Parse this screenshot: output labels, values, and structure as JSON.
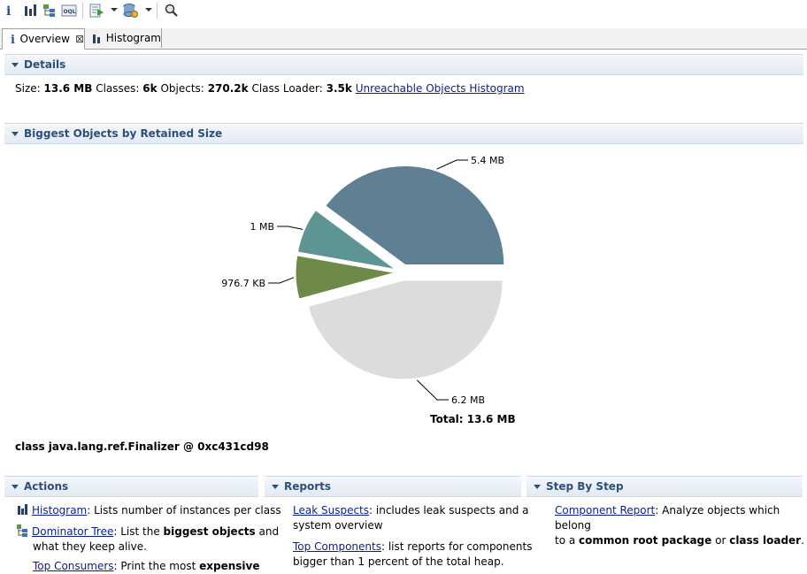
{
  "tabs": [
    {
      "label": "Overview"
    },
    {
      "label": "Histogram"
    }
  ],
  "details": {
    "header": "Details",
    "size_label": "Size:",
    "size_value": "13.6 MB",
    "classes_label": "Classes:",
    "classes_value": "6k",
    "objects_label": "Objects:",
    "objects_value": "270.2k",
    "loader_label": "Class Loader:",
    "loader_value": "3.5k",
    "link": "Unreachable Objects Histogram"
  },
  "biggest": {
    "header": "Biggest Objects by Retained Size",
    "total": "Total: 13.6 MB",
    "selected": "class java.lang.ref.Finalizer @ 0xc431cd98"
  },
  "chart_data": {
    "type": "pie",
    "slices": [
      {
        "label": "5.4 MB",
        "value": 5.4,
        "color": "#5f7f92"
      },
      {
        "label": "1 MB",
        "value": 1.0,
        "color": "#5f9494"
      },
      {
        "label": "976.7 KB",
        "value": 0.954,
        "color": "#6e8a48"
      },
      {
        "label": "6.2 MB",
        "value": 6.2,
        "color": "#dcdcdc"
      }
    ],
    "total": "Total: 13.6 MB"
  },
  "actions": {
    "header": "Actions",
    "histogram_link": "Histogram",
    "histogram_desc": ": Lists number of instances per class",
    "dominator_link": "Dominator Tree",
    "dominator_desc1": ": List the ",
    "dominator_bold": "biggest objects",
    "dominator_desc2": " and",
    "dominator_desc3": "what they keep alive.",
    "consumers_link": "Top Consumers",
    "consumers_desc": ": Print the most ",
    "consumers_bold": "expensive"
  },
  "reports": {
    "header": "Reports",
    "leak_link": "Leak Suspects",
    "leak_desc1": ": includes leak suspects and a",
    "leak_desc2": "system overview",
    "top_link": "Top Components",
    "top_desc1": ": list reports for components",
    "top_desc2": "bigger than 1 percent of the total heap."
  },
  "stepbystep": {
    "header": "Step By Step",
    "comp_link": "Component Report",
    "comp_desc1": ": Analyze objects which belong",
    "comp_desc2a": "to a ",
    "comp_bold1": "common root package",
    "comp_desc2b": " or ",
    "comp_bold2": "class loader",
    "comp_desc2c": "."
  }
}
